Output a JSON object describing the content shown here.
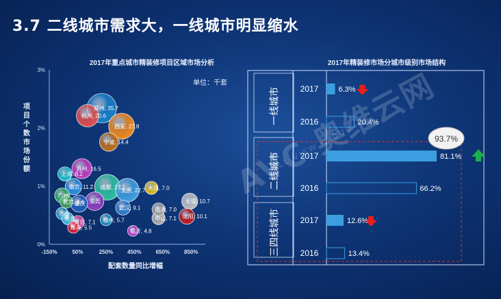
{
  "page": {
    "title": "3.7  二线城市需求大，一线城市明显缩水"
  },
  "watermark": {
    "main": "AVC 奥维云网",
    "sub": "ALL VIEW CLOUD"
  },
  "colors": {
    "bar": "#3a9ee0",
    "down_arrow": "#e8201a",
    "up_arrow": "#1ab04a",
    "highlight_border": "#e03030"
  },
  "chart_data": [
    {
      "type": "scatter",
      "title": "2017年重点城市精装修项目区域市场分析",
      "unit": "单位：千套",
      "xlabel": "配套数量同比增幅",
      "ylabel": "项目个数市场份额",
      "x_ticks": [
        "-150%",
        "50%",
        "250%",
        "450%",
        "650%",
        "850%"
      ],
      "y_ticks": [
        "0%",
        "1%",
        "2%",
        "3%"
      ],
      "xlim": [
        -150,
        950
      ],
      "ylim": [
        0,
        3
      ],
      "points": [
        {
          "label": "郑州, 35.7",
          "x": 220,
          "y": 2.34,
          "size": 35.7,
          "color": "#1a7fc8"
        },
        {
          "label": "杭州, 20.6",
          "x": 120,
          "y": 2.21,
          "size": 20.6,
          "color": "#e05050"
        },
        {
          "label": "西安, 27.8",
          "x": 360,
          "y": 2.03,
          "size": 27.8,
          "color": "#f08a20"
        },
        {
          "label": "宁波, 14.4",
          "x": 270,
          "y": 1.76,
          "size": 14.4,
          "color": "#c07020"
        },
        {
          "label": "苏州, 16.5",
          "x": 80,
          "y": 1.3,
          "size": 16.5,
          "color": "#c040c0"
        },
        {
          "label": "上海, 8.2",
          "x": -40,
          "y": 1.21,
          "size": 8.2,
          "color": "#20c0d0"
        },
        {
          "label": "南京, 11.2",
          "x": 20,
          "y": 0.99,
          "size": 11.2,
          "color": "#3090e0"
        },
        {
          "label": "成都, 27.2",
          "x": 260,
          "y": 0.98,
          "size": 27.2,
          "color": "#30c0a0"
        },
        {
          "label": "太原, 22.7",
          "x": 400,
          "y": 0.93,
          "size": 22.7,
          "color": "#40a0e0"
        },
        {
          "label": "大连, 7.0",
          "x": 570,
          "y": 0.97,
          "size": 7.0,
          "color": "#e0c020"
        },
        {
          "label": "广州",
          "x": -60,
          "y": 0.84,
          "size": 9,
          "color": "#30b060"
        },
        {
          "label": "北京, 6.6",
          "x": -30,
          "y": 0.73,
          "size": 6.6,
          "color": "#40a060"
        },
        {
          "label": "重庆",
          "x": 60,
          "y": 0.7,
          "size": 12,
          "color": "#2060c0"
        },
        {
          "label": "东莞",
          "x": 170,
          "y": 0.74,
          "size": 14,
          "color": "#9040c0"
        },
        {
          "label": "无锡, 10.7",
          "x": 840,
          "y": 0.74,
          "size": 10.7,
          "color": "#c0c0c0"
        },
        {
          "label": "武汉, 9.1",
          "x": 370,
          "y": 0.63,
          "size": 9.1,
          "color": "#3080d0"
        },
        {
          "label": "南通, 7.0",
          "x": 620,
          "y": 0.6,
          "size": 7.0,
          "color": "#a0a0a0"
        },
        {
          "label": "济南",
          "x": -60,
          "y": 0.53,
          "size": 6,
          "color": "#30a0d0"
        },
        {
          "label": "青岛",
          "x": -20,
          "y": 0.44,
          "size": 6,
          "color": "#40c0e0"
        },
        {
          "label": "福州, 5.7",
          "x": 250,
          "y": 0.42,
          "size": 5.7,
          "color": "#2090c0"
        },
        {
          "label": "中山, 7.1",
          "x": 620,
          "y": 0.45,
          "size": 7.1,
          "color": "#b0b0b0"
        },
        {
          "label": "沈阳, 10.1",
          "x": 820,
          "y": 0.48,
          "size": 10.1,
          "color": "#c02020"
        },
        {
          "label": "青岛, 7.1",
          "x": 50,
          "y": 0.38,
          "size": 7.1,
          "color": "#e040a0"
        },
        {
          "label": "珠海, 5.5",
          "x": 20,
          "y": 0.29,
          "size": 5.5,
          "color": "#e02030"
        },
        {
          "label": "临沂, 4.8",
          "x": 440,
          "y": 0.23,
          "size": 4.8,
          "color": "#c040d0"
        }
      ]
    },
    {
      "type": "bar",
      "title": "2017年精装修市场分城市级别市场结构",
      "groups": [
        {
          "name": "一线城市",
          "bars": [
            {
              "year": "2017",
              "value": 6.3,
              "label": "6.3%",
              "trend": "down"
            },
            {
              "year": "2016",
              "value": 20.4,
              "label": "20.4%"
            }
          ]
        },
        {
          "name": "二线城市",
          "bars": [
            {
              "year": "2017",
              "value": 81.1,
              "label": "81.1%",
              "trend": "up"
            },
            {
              "year": "2016",
              "value": 66.2,
              "label": "66.2%"
            }
          ]
        },
        {
          "name": "三四线城市",
          "bars": [
            {
              "year": "2017",
              "value": 12.6,
              "label": "12.6%",
              "trend": "down"
            },
            {
              "year": "2016",
              "value": 13.4,
              "label": "13.4%"
            }
          ]
        }
      ],
      "callout": "93.7%"
    }
  ]
}
